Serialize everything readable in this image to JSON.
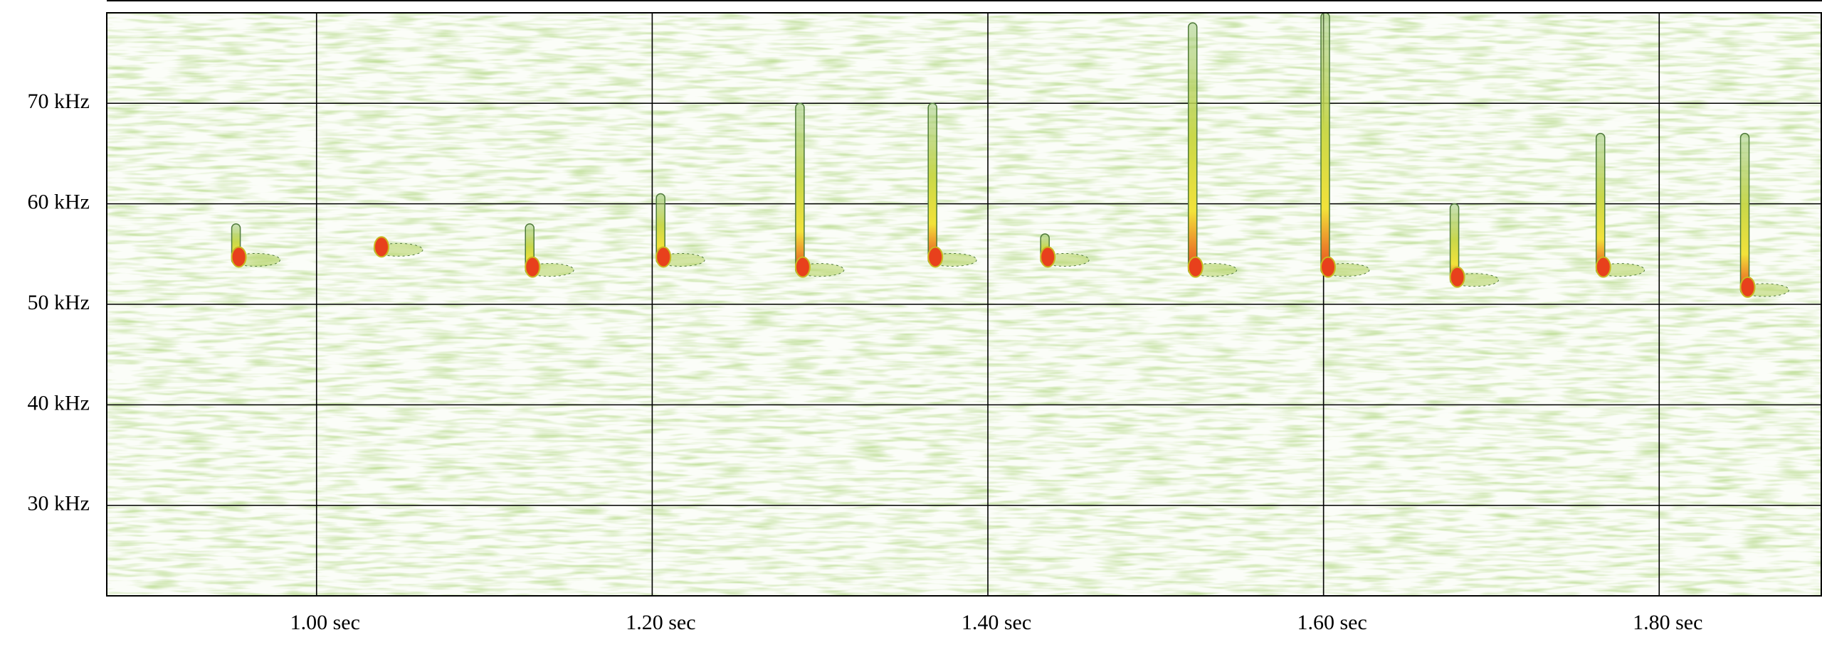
{
  "chart_data": {
    "type": "spectrogram",
    "x": [
      0.952,
      1.037,
      1.127,
      1.205,
      1.288,
      1.367,
      1.434,
      1.522,
      1.601,
      1.678,
      1.765,
      1.851
    ],
    "high": [
      58,
      56,
      58,
      61,
      70,
      70,
      57,
      78,
      79,
      60,
      67,
      67
    ],
    "low": [
      54,
      55,
      53,
      54,
      53,
      54,
      54,
      53,
      53,
      52,
      53,
      51
    ],
    "color": "#e8401c",
    "xlim": [
      0.875,
      1.897
    ],
    "ylim": [
      21,
      79
    ],
    "xticks": [
      {
        "value": 1.0,
        "label": "1.00 sec"
      },
      {
        "value": 1.2,
        "label": "1.20 sec"
      },
      {
        "value": 1.4,
        "label": "1.40 sec"
      },
      {
        "value": 1.6,
        "label": "1.60 sec"
      },
      {
        "value": 1.8,
        "label": "1.80 sec"
      }
    ],
    "yticks": [
      {
        "value": 70,
        "label": "70 kHz"
      },
      {
        "value": 60,
        "label": "60 kHz"
      },
      {
        "value": 50,
        "label": "50 kHz"
      },
      {
        "value": 40,
        "label": "40 kHz"
      },
      {
        "value": 30,
        "label": "30 kHz"
      }
    ],
    "grid": true
  }
}
